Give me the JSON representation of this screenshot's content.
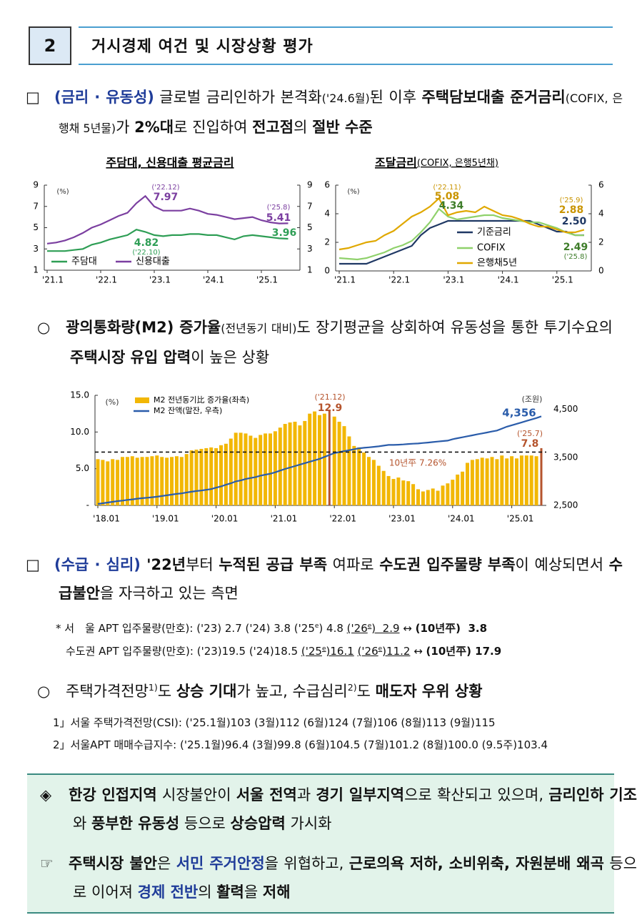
{
  "header": {
    "number": "2",
    "title": "거시경제 여건 및 시장상황 평가"
  },
  "para1": {
    "runs": [
      "□",
      "(금리 · 유동성)",
      " 글로벌 금리인하가 본격화",
      "('24.6월)",
      "된 이후 ",
      "주택담보대출 준거금리",
      "(COFIX, 은행채 5년물)",
      "가 ",
      "2%대",
      "로 진입하여 ",
      "전고점",
      "의 ",
      "절반 수준"
    ]
  },
  "chart_data": [
    {
      "type": "line",
      "title": "주담대, 신용대출 평균금리",
      "categories": [
        "'21.1",
        null,
        null,
        null,
        null,
        null,
        "'22.1",
        null,
        null,
        null,
        null,
        null,
        "'23.1",
        null,
        null,
        null,
        null,
        null,
        "'24.1",
        null,
        null,
        null,
        null,
        null,
        "'25.1",
        null,
        null,
        null
      ],
      "series": [
        {
          "name": "주담대",
          "color": "#2e9e55",
          "values": [
            2.8,
            2.8,
            2.8,
            2.9,
            3.0,
            3.4,
            3.6,
            3.9,
            4.1,
            4.3,
            4.82,
            4.6,
            4.3,
            4.2,
            4.3,
            4.3,
            4.4,
            4.4,
            4.3,
            4.3,
            4.1,
            3.9,
            4.2,
            4.3,
            4.2,
            4.1,
            4.0,
            3.96
          ]
        },
        {
          "name": "신용대출",
          "color": "#7b3fa0",
          "values": [
            3.5,
            3.6,
            3.8,
            4.1,
            4.5,
            5.0,
            5.3,
            5.7,
            6.1,
            6.4,
            7.3,
            7.97,
            7.0,
            6.6,
            6.6,
            6.6,
            6.8,
            6.6,
            6.3,
            6.2,
            6.0,
            5.8,
            5.9,
            6.0,
            5.7,
            5.5,
            5.4,
            5.41
          ]
        }
      ],
      "ylim": [
        1,
        9
      ],
      "yticks": [
        1,
        3,
        5,
        7,
        9
      ],
      "y2lim": [
        1,
        9
      ],
      "y2ticks": [
        1,
        3,
        5,
        7,
        9
      ],
      "annotations": [
        "(%)",
        "('22.12)",
        "7.97",
        "4.82",
        "('22.10)",
        "('25.8)",
        "5.41",
        "3.96"
      ]
    },
    {
      "type": "line",
      "title": "조달금리",
      "subtitle": "(COFIX, 은행5년채)",
      "categories": [
        "'21.1",
        null,
        null,
        null,
        null,
        null,
        "'22.1",
        null,
        null,
        null,
        null,
        null,
        "'23.1",
        null,
        null,
        null,
        null,
        null,
        "'24.1",
        null,
        null,
        null,
        null,
        null,
        "'25.1",
        null,
        null,
        null
      ],
      "series": [
        {
          "name": "기준금리",
          "color": "#1f3864",
          "values": [
            0.5,
            0.5,
            0.5,
            0.5,
            0.75,
            1.0,
            1.25,
            1.5,
            1.75,
            2.5,
            3.0,
            3.25,
            3.5,
            3.5,
            3.5,
            3.5,
            3.5,
            3.5,
            3.5,
            3.5,
            3.5,
            3.5,
            3.25,
            3.0,
            2.75,
            2.75,
            2.5,
            2.5
          ]
        },
        {
          "name": "COFIX",
          "color": "#8fd16b",
          "values": [
            0.9,
            0.85,
            0.8,
            0.9,
            1.1,
            1.3,
            1.6,
            1.8,
            2.1,
            2.7,
            3.4,
            4.34,
            3.8,
            3.6,
            3.7,
            3.8,
            3.9,
            3.9,
            3.7,
            3.6,
            3.5,
            3.4,
            3.4,
            3.2,
            3.0,
            2.7,
            2.5,
            2.49
          ]
        },
        {
          "name": "은행채5년",
          "color": "#e0a800",
          "values": [
            1.5,
            1.6,
            1.8,
            2.0,
            2.1,
            2.5,
            2.8,
            3.3,
            3.8,
            4.1,
            4.5,
            5.08,
            3.9,
            4.1,
            4.2,
            4.1,
            4.5,
            4.2,
            3.9,
            3.8,
            3.6,
            3.3,
            3.1,
            3.1,
            2.9,
            2.7,
            2.7,
            2.88
          ]
        }
      ],
      "ylim": [
        0,
        6
      ],
      "yticks": [
        0,
        2,
        4,
        6
      ],
      "y2lim": [
        0,
        6
      ],
      "y2ticks": [
        0,
        2,
        4,
        6
      ],
      "annotations": [
        "(%)",
        "('22.11)",
        "5.08",
        "4.34",
        "('25.9)",
        "2.88",
        "2.50",
        "2.49",
        "('25.8)"
      ]
    },
    {
      "type": "bar",
      "categories": [
        "'18.01",
        null,
        null,
        null,
        null,
        null,
        null,
        null,
        null,
        null,
        null,
        null,
        "'19.01",
        null,
        null,
        null,
        null,
        null,
        null,
        null,
        null,
        null,
        null,
        null,
        "'20.01",
        null,
        null,
        null,
        null,
        null,
        null,
        null,
        null,
        null,
        null,
        null,
        "'21.01",
        null,
        null,
        null,
        null,
        null,
        null,
        null,
        null,
        null,
        null,
        null,
        "'22.01",
        null,
        null,
        null,
        null,
        null,
        null,
        null,
        null,
        null,
        null,
        null,
        "'23.01",
        null,
        null,
        null,
        null,
        null,
        null,
        null,
        null,
        null,
        null,
        null,
        "'24.01",
        null,
        null,
        null,
        null,
        null,
        null,
        null,
        null,
        null,
        null,
        null,
        "'25.01",
        null,
        null,
        null,
        null,
        null,
        null
      ],
      "series": [
        {
          "name": "M2 전년동기比 증가율(좌측)",
          "type": "bar",
          "color": "#f2b705",
          "values": [
            6.3,
            6.2,
            6.0,
            6.3,
            6.2,
            6.6,
            6.6,
            6.7,
            6.5,
            6.6,
            6.6,
            6.7,
            6.8,
            6.6,
            6.5,
            6.6,
            6.7,
            6.6,
            7.0,
            7.5,
            7.6,
            7.7,
            7.8,
            7.9,
            7.8,
            8.2,
            8.4,
            9.1,
            9.9,
            9.9,
            9.8,
            9.5,
            9.2,
            9.6,
            9.8,
            9.8,
            10.1,
            10.6,
            11.1,
            11.3,
            11.4,
            10.9,
            11.5,
            12.5,
            12.8,
            12.3,
            12.5,
            12.9,
            12.1,
            11.4,
            10.8,
            9.4,
            8.1,
            7.9,
            7.2,
            6.6,
            6.2,
            5.4,
            4.7,
            4.0,
            3.6,
            3.8,
            3.4,
            3.3,
            2.9,
            2.2,
            1.9,
            2.1,
            2.3,
            2.0,
            2.7,
            3.0,
            3.5,
            4.2,
            4.6,
            5.8,
            6.2,
            6.3,
            6.5,
            6.4,
            6.6,
            6.3,
            6.8,
            6.4,
            6.7,
            6.4,
            6.8,
            6.8,
            6.8,
            6.7,
            7.8
          ]
        },
        {
          "name": "M2 잔액(말잔, 우측)",
          "type": "line",
          "axis": "y2",
          "color": "#2a5caa",
          "values": [
            2530,
            2545,
            2560,
            2575,
            2590,
            2600,
            2615,
            2625,
            2640,
            2650,
            2660,
            2670,
            2680,
            2695,
            2710,
            2725,
            2740,
            2750,
            2770,
            2785,
            2800,
            2810,
            2825,
            2840,
            2870,
            2895,
            2930,
            2960,
            3000,
            3020,
            3050,
            3070,
            3090,
            3120,
            3140,
            3160,
            3190,
            3225,
            3260,
            3290,
            3320,
            3350,
            3380,
            3410,
            3440,
            3470,
            3510,
            3550,
            3590,
            3610,
            3630,
            3650,
            3670,
            3690,
            3700,
            3710,
            3720,
            3730,
            3745,
            3760,
            3760,
            3765,
            3770,
            3780,
            3785,
            3790,
            3800,
            3810,
            3820,
            3830,
            3840,
            3850,
            3880,
            3900,
            3920,
            3940,
            3960,
            3980,
            4000,
            4020,
            4040,
            4060,
            4100,
            4140,
            4170,
            4200,
            4230,
            4260,
            4290,
            4320,
            4356
          ]
        }
      ],
      "ylim": [
        0,
        15
      ],
      "yticks": [
        {
          "value": 0,
          "label": "-"
        },
        {
          "value": 5,
          "label": "5.0"
        },
        {
          "value": 10,
          "label": "10.0"
        },
        {
          "value": 15,
          "label": "15.0"
        }
      ],
      "y2lim": [
        2500,
        4794
      ],
      "y2ticks": [
        {
          "value": 2500,
          "label": "2,500"
        },
        {
          "value": 3500,
          "label": "3,500"
        },
        {
          "value": 4500,
          "label": "4,500"
        }
      ],
      "reference_line": 7.26,
      "annotations": [
        "(%)",
        "(조원)",
        "('21.12)",
        "12.9",
        "4,356",
        "('25.7)",
        "7.8",
        "10년平 7.26%"
      ]
    }
  ],
  "para2": {
    "runs": [
      "○",
      "광의통화량(M2) 증가율",
      "(전년동기 대비)",
      "도 장기평균을 상회하여 유동성을 통한 투기수요의 ",
      "주택시장 유입 압력",
      "이 높은 상황"
    ]
  },
  "para3": {
    "runs": [
      "□",
      "(수급 · 심리)",
      " '22년",
      "부터 ",
      "누적된 공급 부족",
      " 여파로 ",
      "수도권 입주물량 부족",
      "이 예상되면서 ",
      "수급불안",
      "을 자극하고 있는 측면"
    ]
  },
  "notes": [
    [
      "* 서　울 APT 입주물량(만호): ('23) 2.7 ('24) 3.8 ('25",
      "e",
      ") 4.8 ",
      "('26",
      "e",
      ")  2.9",
      " ↔ ",
      "(10년平)  3.8"
    ],
    [
      "수도권 APT 입주물량(만호): ('23)19.5 ('24)18.5 ",
      "('25",
      "e",
      ")16.1",
      " ",
      "('26",
      "e",
      ")11.2",
      " ↔ ",
      "(10년平) 17.9"
    ]
  ],
  "para4": {
    "runs": [
      "○",
      "주택가격전망",
      "1)",
      "도 ",
      "상승 기대",
      "가 높고, 수급심리",
      "2)",
      "도 ",
      "매도자 우위 상황"
    ]
  },
  "footnotes": [
    "1」서울 주택가격전망(CSI): ('25.1월)103 (3월)112 (6월)124 (7월)106 (8월)113 (9월)115",
    "2」서울APT 매매수급지수: ('25.1월)96.4 (3월)99.8 (6월)104.5 (7월)101.2 (8월)100.0 (9.5주)103.4"
  ],
  "box": {
    "point1": [
      "◈",
      "한강 인접지역",
      " 시장불안이 ",
      "서울 전역",
      "과 ",
      "경기 일부지역",
      "으로 확산되고 있으며, ",
      "금리인하 기조",
      "와 ",
      "풍부한 유동성",
      " 등으로 ",
      "상승압력",
      " 가시화"
    ],
    "point2": [
      "☞",
      "주택시장 불안",
      "은 ",
      "서민 주거안정",
      "을 위협하고, ",
      "근로의욕 저하, 소비위축, 자원분배 왜곡",
      " 등으로 이어져 ",
      "경제 전반",
      "의 ",
      "활력",
      "을 ",
      "저해"
    ]
  }
}
